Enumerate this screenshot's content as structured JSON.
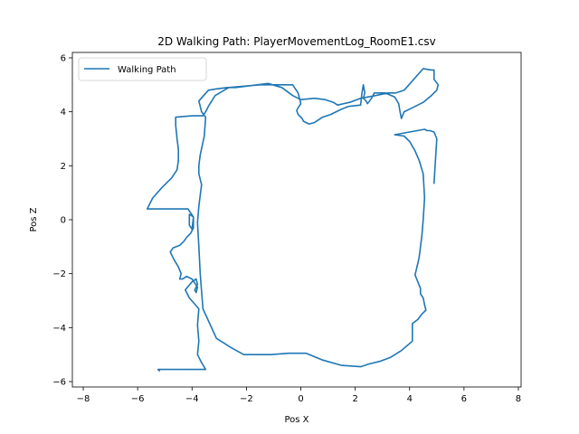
{
  "chart_data": {
    "type": "line",
    "title": "2D Walking Path: PlayerMovementLog_RoomE1.csv",
    "xlabel": "Pos X",
    "ylabel": "Pos Z",
    "xlim": [
      -8.4,
      8.1
    ],
    "ylim": [
      -6.2,
      6.2
    ],
    "xticks": [
      -8,
      -6,
      -4,
      -2,
      0,
      2,
      4,
      6,
      8
    ],
    "yticks": [
      -6,
      -4,
      -2,
      0,
      2,
      4,
      6
    ],
    "legend_position": "upper-left",
    "grid": false,
    "series": [
      {
        "name": "Walking Path",
        "color": "#1f77b4",
        "x": [
          -5.2,
          -5.25,
          -5.2,
          -4.7,
          -4.1,
          -3.5,
          -3.65,
          -3.8,
          -3.75,
          -3.8,
          -3.75,
          -4.1,
          -4.25,
          -4.0,
          -3.85,
          -3.8,
          -3.9,
          -3.85,
          -3.8,
          -4.0,
          -4.2,
          -4.35,
          -4.45,
          -4.4,
          -4.5,
          -4.65,
          -4.8,
          -4.7,
          -4.45,
          -4.3,
          -4.2,
          -4.05,
          -3.95,
          -3.95,
          -3.95,
          -4.1,
          -4.1,
          -4.0,
          -3.95,
          -4.15,
          -4.6,
          -5.2,
          -5.65,
          -5.45,
          -5.1,
          -4.75,
          -4.55,
          -4.5,
          -4.5,
          -4.55,
          -4.6,
          -4.6,
          -4.0,
          -3.6,
          -3.5,
          -3.4,
          -3.15,
          -2.65,
          -1.5,
          -0.3,
          -0.1,
          0.0,
          -0.1,
          -0.15,
          -0.1,
          0.0,
          0.05,
          0.1,
          0.3,
          0.5,
          0.8,
          1.1,
          1.3,
          1.5,
          1.75,
          2.2,
          2.25,
          2.3,
          2.35,
          2.3,
          2.4,
          2.45,
          2.6,
          2.7,
          2.75,
          2.9,
          3.1,
          3.45,
          3.6,
          3.65,
          3.7,
          3.8,
          4.0,
          4.5,
          4.8,
          5.0,
          5.05,
          4.9,
          4.9,
          4.9,
          4.9,
          4.85,
          4.8,
          4.5,
          3.8,
          3.5,
          3.2,
          2.75,
          2.2,
          1.8,
          1.35,
          1.2,
          0.9,
          0.5,
          0.0,
          -0.3,
          -0.7,
          -1.2,
          -2.0,
          -2.4,
          -2.7,
          -3.1,
          -3.4,
          -3.75,
          -3.65,
          -3.5,
          -3.55,
          -3.7,
          -3.75,
          -3.75,
          -3.65,
          -3.7,
          -3.75,
          -3.8,
          -3.75,
          -3.7,
          -3.6,
          -3.1,
          -2.55,
          -2.1,
          -1.7,
          -1.1,
          -0.45,
          0.2,
          0.8,
          1.5,
          2.2,
          2.5,
          2.9,
          3.3,
          3.7,
          4.1,
          4.1,
          4.3,
          4.45,
          4.6,
          4.55,
          4.5,
          4.4,
          4.4,
          4.3,
          4.2,
          4.35,
          4.45,
          4.5,
          4.55,
          4.5,
          4.35,
          4.2,
          4.0,
          3.8,
          3.45
        ],
        "y": [
          -5.6,
          -5.55,
          -5.55,
          -5.55,
          -5.55,
          -5.55,
          -5.3,
          -5.0,
          -4.5,
          -3.9,
          -3.3,
          -2.9,
          -2.6,
          -2.3,
          -2.2,
          -2.4,
          -2.6,
          -2.7,
          -2.5,
          -2.2,
          -2.1,
          -2.2,
          -2.2,
          -2.0,
          -1.75,
          -1.5,
          -1.2,
          -1.05,
          -0.95,
          -0.8,
          -0.65,
          -0.5,
          -0.3,
          -0.1,
          0.1,
          0.2,
          -0.2,
          -0.35,
          0.1,
          0.4,
          0.4,
          0.4,
          0.4,
          0.8,
          1.2,
          1.55,
          1.85,
          2.2,
          2.6,
          3.0,
          3.5,
          3.8,
          3.85,
          3.85,
          4.0,
          4.2,
          4.6,
          4.9,
          5.0,
          5.0,
          4.7,
          4.3,
          4.15,
          4.05,
          3.9,
          3.8,
          3.75,
          3.65,
          3.55,
          3.6,
          3.8,
          3.9,
          4.0,
          4.1,
          4.2,
          4.25,
          4.7,
          5.0,
          4.7,
          4.5,
          4.4,
          4.3,
          4.5,
          4.7,
          4.7,
          4.7,
          4.7,
          4.55,
          4.3,
          4.0,
          3.75,
          4.0,
          4.1,
          4.35,
          4.6,
          4.8,
          5.0,
          5.2,
          5.35,
          5.45,
          5.55,
          5.55,
          5.55,
          5.6,
          4.8,
          4.7,
          4.7,
          4.6,
          4.5,
          4.35,
          4.25,
          4.35,
          4.45,
          4.5,
          4.45,
          4.6,
          4.9,
          5.05,
          4.95,
          4.9,
          4.9,
          4.85,
          4.8,
          4.4,
          4.0,
          3.8,
          3.1,
          2.4,
          2.0,
          1.7,
          1.3,
          0.9,
          0.5,
          -0.1,
          -1.0,
          -2.0,
          -3.3,
          -4.4,
          -4.75,
          -5.0,
          -5.0,
          -5.0,
          -4.95,
          -4.95,
          -5.2,
          -5.4,
          -5.45,
          -5.35,
          -5.25,
          -5.1,
          -4.85,
          -4.5,
          -3.85,
          -3.7,
          -3.5,
          -3.35,
          -3.15,
          -2.9,
          -2.75,
          -2.55,
          -2.3,
          -2.05,
          -1.4,
          -0.6,
          0.0,
          0.8,
          1.7,
          2.2,
          2.55,
          2.9,
          3.1,
          3.15
        ],
        "x_closing": [
          4.55,
          4.65,
          4.75,
          4.9,
          5.0,
          4.95,
          4.9
        ],
        "y_closing": [
          3.35,
          3.3,
          3.3,
          3.25,
          3.0,
          2.2,
          1.35
        ]
      }
    ]
  }
}
